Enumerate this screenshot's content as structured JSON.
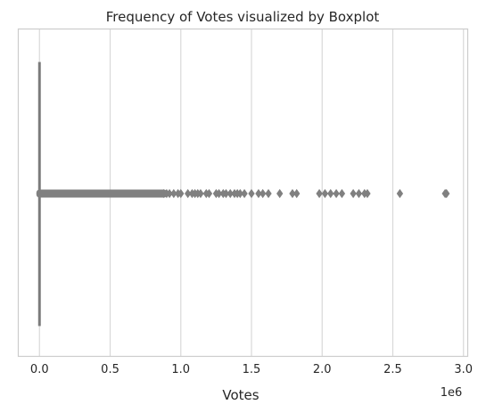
{
  "chart_data": {
    "type": "boxplot",
    "orientation": "horizontal",
    "title": "Frequency of Votes visualized by Boxplot",
    "xlabel": "Votes",
    "ylabel": "",
    "x_offset_label": "1e6",
    "xlim": [
      -0.15,
      3.03
    ],
    "x_scale_multiplier": 1000000,
    "x_ticks": [
      0.0,
      0.5,
      1.0,
      1.5,
      2.0,
      2.5,
      3.0
    ],
    "x_tick_labels": [
      "0.0",
      "0.5",
      "1.0",
      "1.5",
      "2.0",
      "2.5",
      "3.0"
    ],
    "grid": "vertical",
    "colors": {
      "box": "#808080",
      "grid": "#d9d9d9",
      "frame": "#cccccc"
    },
    "box": {
      "whisker_low": 0.0,
      "q1": 0.0,
      "median": 0.0,
      "q3": 0.0,
      "whisker_high": 0.0
    },
    "outlier_dense_range": [
      0.0,
      0.88
    ],
    "outliers": [
      0.88,
      0.9,
      0.92,
      0.95,
      0.98,
      1.0,
      1.05,
      1.08,
      1.1,
      1.12,
      1.14,
      1.18,
      1.2,
      1.25,
      1.27,
      1.3,
      1.32,
      1.35,
      1.38,
      1.4,
      1.42,
      1.45,
      1.5,
      1.55,
      1.58,
      1.62,
      1.7,
      1.79,
      1.82,
      1.98,
      2.02,
      2.06,
      2.1,
      2.14,
      2.22,
      2.26,
      2.3,
      2.32,
      2.55,
      2.87,
      2.88
    ]
  }
}
